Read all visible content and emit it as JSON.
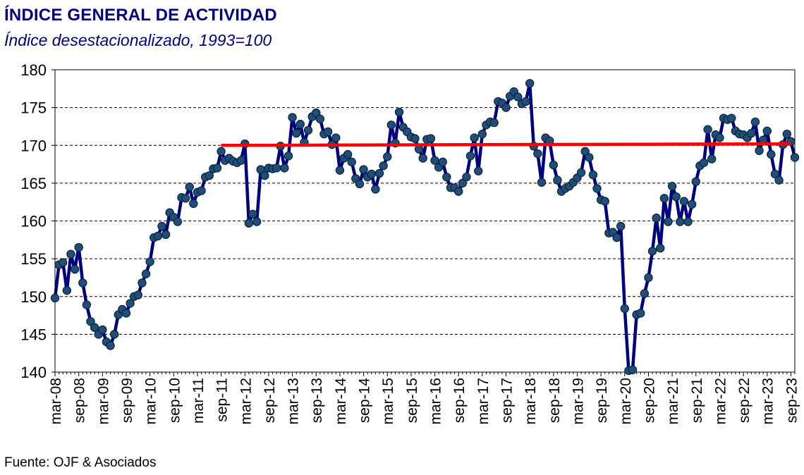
{
  "header": {
    "title": "ÍNDICE GENERAL DE ACTIVIDAD",
    "subtitle": "Índice desestacionalizado, 1993=100"
  },
  "footer": {
    "source": "Fuente: OJF & Asociados"
  },
  "colors": {
    "title": "#000080",
    "series_line": "#000080",
    "marker_fill": "#1f4e79",
    "trend_line": "#ff0000",
    "grid": "#000000"
  },
  "chart_data": {
    "type": "line",
    "title": "ÍNDICE GENERAL DE ACTIVIDAD",
    "subtitle": "Índice desestacionalizado, 1993=100",
    "xlabel": "",
    "ylabel": "",
    "ylim": [
      140,
      180
    ],
    "yticks": [
      "140",
      "145",
      "150",
      "155",
      "160",
      "165",
      "170",
      "175",
      "180"
    ],
    "xtick_labels": [
      "mar-08",
      "sep-08",
      "mar-09",
      "sep-09",
      "mar-10",
      "sep-10",
      "mar-11",
      "sep-11",
      "mar-12",
      "sep-12",
      "mar-13",
      "sep-13",
      "mar-14",
      "sep-14",
      "mar-15",
      "sep-15",
      "mar-16",
      "sep-16",
      "mar-17",
      "sep-17",
      "mar-18",
      "sep-18",
      "mar-19",
      "sep-19",
      "mar-20",
      "sep-20",
      "mar-21",
      "sep-21",
      "mar-22",
      "sep-22",
      "mar-23",
      "sep-23"
    ],
    "grid": "horizontal dashed",
    "x_start": "mar-08",
    "x_end": "sep-23",
    "series": [
      {
        "values": [
          149.8,
          154.2,
          154.5,
          150.8,
          155.6,
          153.6,
          156.5,
          151.8,
          148.9,
          146.7,
          145.9,
          145.0,
          145.6,
          144.0,
          143.5,
          145.0,
          147.6,
          148.3,
          147.8,
          149.1,
          150.0,
          150.2,
          151.8,
          153.0,
          154.6,
          157.8,
          158.0,
          159.3,
          158.2,
          161.1,
          160.5,
          159.9,
          163.1,
          163.0,
          164.5,
          162.3,
          163.8,
          164.0,
          165.8,
          166.0,
          166.9,
          167.0,
          169.2,
          168.0,
          168.3,
          167.9,
          167.7,
          168.0,
          170.2,
          159.7,
          160.9,
          159.9,
          166.8,
          166.0,
          167.0,
          166.9,
          167.0,
          169.9,
          167.0,
          168.6,
          173.7,
          171.6,
          172.8,
          170.4,
          172.0,
          173.8,
          174.3,
          173.5,
          171.5,
          171.8,
          170.1,
          171.0,
          166.7,
          168.3,
          168.8,
          167.8,
          165.6,
          164.9,
          166.8,
          165.8,
          166.2,
          164.2,
          166.3,
          167.3,
          168.5,
          172.7,
          170.3,
          174.4,
          172.4,
          171.8,
          171.1,
          170.9,
          169.5,
          168.3,
          170.8,
          170.9,
          168.0,
          167.1,
          167.8,
          165.8,
          164.4,
          164.4,
          163.9,
          165.0,
          165.8,
          168.6,
          171.0,
          166.6,
          171.5,
          172.7,
          173.1,
          173.0,
          175.8,
          175.6,
          175.0,
          176.5,
          177.1,
          176.4,
          175.5,
          175.8,
          178.2,
          169.9,
          168.9,
          165.1,
          171.0,
          170.6,
          167.4,
          165.4,
          163.9,
          164.3,
          164.6,
          165.1,
          165.7,
          166.4,
          169.2,
          168.4,
          166.1,
          164.3,
          162.8,
          162.6,
          158.4,
          158.5,
          157.8,
          159.3,
          148.4,
          140.2,
          140.3,
          147.6,
          147.8,
          150.4,
          152.5,
          156.0,
          160.4,
          156.4,
          163.0,
          159.9,
          164.6,
          163.2,
          159.9,
          162.6,
          159.9,
          162.2,
          165.2,
          167.3,
          167.7,
          172.1,
          168.2,
          171.4,
          171.0,
          173.6,
          173.4,
          173.6,
          171.9,
          171.5,
          171.4,
          171.0,
          171.6,
          173.1,
          169.3,
          170.7,
          171.9,
          168.8,
          166.2,
          165.4,
          170.1,
          171.5,
          170.5,
          168.4
        ]
      }
    ],
    "reference_line": {
      "from": "sep-11",
      "to": "sep-23",
      "y_start": 170.0,
      "y_end": 170.2
    }
  }
}
